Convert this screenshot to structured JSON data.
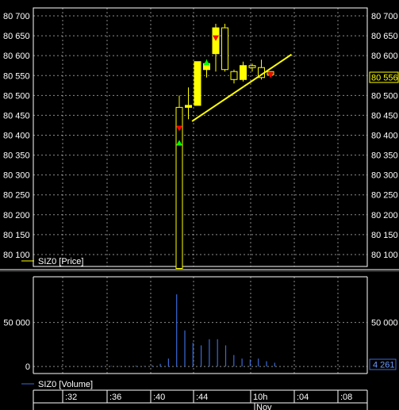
{
  "colors": {
    "background": "#000000",
    "grid": "#ffffff",
    "frame": "#ffffff",
    "candle_up_body": "#ffff00",
    "candle_down_body": "#000000",
    "candle_outline": "#ffff00",
    "trendline": "#ffff00",
    "buy_marker": "#00ff00",
    "sell_marker": "#ff0000",
    "volume_bar": "#3a6ad8",
    "last_price_box": "#ffff00",
    "last_volume_box": "#3a6ad8"
  },
  "price_panel": {
    "legend": "SIZ0 [Price]",
    "last_price_label": "80 556"
  },
  "volume_panel": {
    "legend": "SIZ0 [Volume]",
    "last_volume_label": "4 261"
  },
  "time_axis": {
    "ticks": [
      ":32",
      ":36",
      ":40",
      ":44",
      "10h",
      ":04",
      ":08"
    ],
    "date_label": "Nov"
  },
  "chart_data": [
    {
      "type": "candlestick",
      "series_name": "SIZ0 [Price]",
      "y_ticks": [
        "80 100",
        "80 150",
        "80 200",
        "80 250",
        "80 300",
        "80 350",
        "80 400",
        "80 450",
        "80 500",
        "80 550",
        "80 600",
        "80 650",
        "80 700"
      ],
      "ylim": [
        80070,
        80720
      ],
      "grid": true,
      "legend_placement": "bottom-left",
      "candles": [
        {
          "open": 80470,
          "high": 80500,
          "low": 80065,
          "close": 80065
        },
        {
          "open": 80470,
          "high": 80520,
          "low": 80440,
          "close": 80475
        },
        {
          "open": 80475,
          "high": 80585,
          "low": 80475,
          "close": 80585
        },
        {
          "open": 80565,
          "high": 80590,
          "low": 80545,
          "close": 80580
        },
        {
          "open": 80605,
          "high": 80680,
          "low": 80560,
          "close": 80670
        },
        {
          "open": 80670,
          "high": 80680,
          "low": 80560,
          "close": 80565
        },
        {
          "open": 80560,
          "high": 80565,
          "low": 80530,
          "close": 80540
        },
        {
          "open": 80540,
          "high": 80585,
          "low": 80535,
          "close": 80575
        },
        {
          "open": 80575,
          "high": 80580,
          "low": 80560,
          "close": 80570
        },
        {
          "open": 80570,
          "high": 80590,
          "low": 80540,
          "close": 80545
        },
        {
          "open": 80560,
          "high": 80560,
          "low": 80548,
          "close": 80552
        }
      ],
      "trendline": {
        "from_candle": 1.4,
        "from_value": 80435,
        "to_candle": 12.3,
        "to_value": 80603
      },
      "markers": [
        {
          "candle": 0,
          "value": 80380,
          "kind": "buy"
        },
        {
          "candle": 0,
          "value": 80418,
          "kind": "sell"
        },
        {
          "candle": 3,
          "value": 80582,
          "kind": "buy"
        },
        {
          "candle": 4,
          "value": 80645,
          "kind": "sell"
        },
        {
          "candle": 10,
          "value": 80552,
          "kind": "sell"
        }
      ],
      "last_value": 80556
    },
    {
      "type": "bar",
      "series_name": "SIZ0 [Volume]",
      "y_ticks": [
        "0",
        "50 000"
      ],
      "ylim": [
        -8000,
        102000
      ],
      "values": [
        300,
        600,
        400,
        200,
        900,
        400,
        1500,
        3000,
        9000,
        82000,
        41000,
        27000,
        24000,
        31000,
        31000,
        24000,
        13000,
        9000,
        8000,
        9000,
        6000,
        4261
      ]
    }
  ]
}
